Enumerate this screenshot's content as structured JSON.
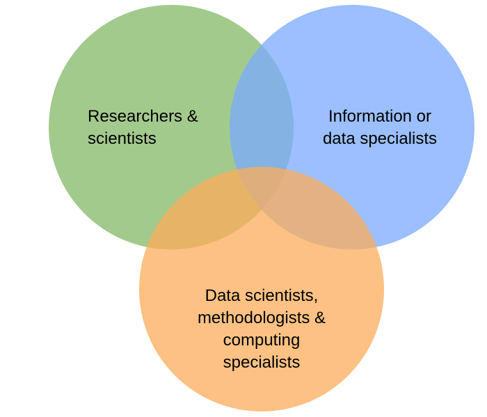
{
  "diagram": {
    "type": "venn",
    "circles": [
      {
        "id": "researchers",
        "color": "#84b867",
        "label_lines": [
          "Researchers &",
          "scientists"
        ]
      },
      {
        "id": "information-specialists",
        "color": "#7aaaff",
        "label_lines": [
          "Information or",
          "data specialists"
        ]
      },
      {
        "id": "data-scientists",
        "color": "#fcac5a",
        "label_lines": [
          "Data scientists,",
          "methodologists &",
          "computing",
          "specialists"
        ]
      }
    ]
  }
}
